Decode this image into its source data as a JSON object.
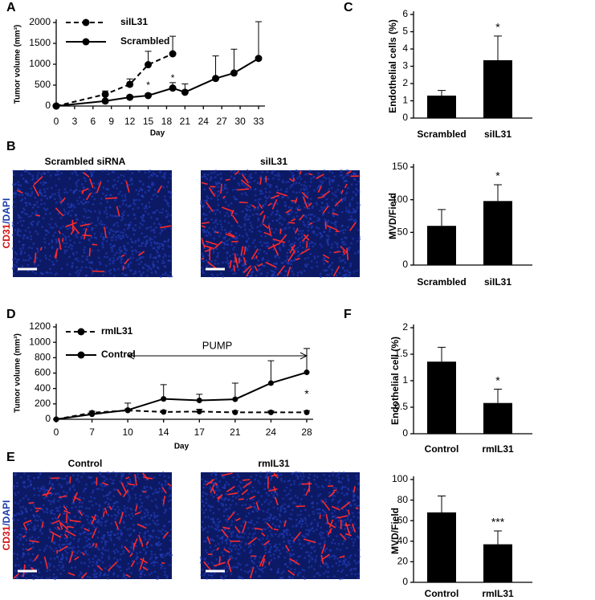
{
  "panel_labels": [
    "A",
    "B",
    "C",
    "D",
    "E",
    "F"
  ],
  "images": {
    "B": [
      "Scrambled siRNA",
      "siIL31"
    ],
    "E": [
      "Control",
      "rmIL31"
    ],
    "stain": [
      "CD31",
      "/DAPI"
    ]
  },
  "chart_data": [
    {
      "type": "line",
      "x_label": "Day",
      "y_label": "Tumor volume (mm³)",
      "xlim": [
        0,
        33
      ],
      "xticks": [
        0,
        3,
        6,
        9,
        12,
        15,
        18,
        21,
        24,
        27,
        30,
        33
      ],
      "ylim": [
        0,
        2000
      ],
      "yticks": [
        0,
        500,
        1000,
        1500,
        2000
      ],
      "legend": "upper left",
      "series": [
        {
          "name": "siIL31",
          "color": "#000000",
          "line_style": "dashed",
          "x": [
            0,
            8,
            12,
            15,
            19
          ],
          "values": [
            0,
            280,
            520,
            990,
            1250
          ],
          "errors": [
            0,
            80,
            130,
            320,
            420
          ]
        },
        {
          "name": "Scrambled",
          "color": "#000000",
          "line_style": "solid",
          "x": [
            0,
            8,
            12,
            15,
            19,
            21,
            26,
            29,
            33
          ],
          "values": [
            0,
            120,
            210,
            250,
            430,
            330,
            660,
            790,
            1140
          ],
          "errors": [
            0,
            30,
            40,
            50,
            130,
            200,
            540,
            570,
            880
          ]
        }
      ],
      "annotations": [
        {
          "text": "**",
          "x": 12
        },
        {
          "text": "*",
          "x": 15
        },
        {
          "text": "*",
          "x": 19
        }
      ]
    },
    {
      "type": "bar",
      "y_label": "Endothelial cells (%)",
      "categories": [
        "Scrambled",
        "siIL31"
      ],
      "values": [
        1.3,
        3.35
      ],
      "errors": [
        0.3,
        1.4
      ],
      "color": "#000000",
      "ylim": [
        0,
        6
      ],
      "yticks": [
        0,
        1,
        2,
        3,
        4,
        5,
        6
      ],
      "annotation": "*"
    },
    {
      "type": "bar",
      "y_label": "MVD/Field",
      "categories": [
        "Scrambled",
        "siIL31"
      ],
      "values": [
        60,
        98
      ],
      "errors": [
        25,
        25
      ],
      "color": "#000000",
      "ylim": [
        0,
        150
      ],
      "yticks": [
        0,
        50,
        100,
        150
      ],
      "annotation": "*"
    },
    {
      "type": "line",
      "x_label": "Day",
      "y_label": "Tumor volume (mm³)",
      "categories": [
        "0",
        "7",
        "10",
        "14",
        "17",
        "21",
        "24",
        "28"
      ],
      "ylim": [
        0,
        1200
      ],
      "yticks": [
        0,
        200,
        400,
        600,
        800,
        1000,
        1200
      ],
      "legend": "upper left",
      "series": [
        {
          "name": "rmIL31",
          "color": "#000000",
          "line_style": "dashed",
          "values": [
            0,
            85,
            115,
            95,
            100,
            90,
            90,
            90
          ],
          "errors": [
            0,
            20,
            20,
            20,
            30,
            20,
            20,
            20
          ]
        },
        {
          "name": "Control",
          "color": "#000000",
          "line_style": "solid",
          "values": [
            0,
            65,
            120,
            265,
            245,
            260,
            470,
            610
          ],
          "errors": [
            0,
            15,
            90,
            185,
            80,
            210,
            290,
            310
          ]
        }
      ],
      "arrow": {
        "label": "PUMP",
        "from": "10",
        "to": "28"
      },
      "annotation": "*"
    },
    {
      "type": "bar",
      "y_label": "Endothelial cell (%)",
      "categories": [
        "Control",
        "rmIL31"
      ],
      "values": [
        1.36,
        0.58
      ],
      "errors": [
        0.27,
        0.26
      ],
      "color": "#000000",
      "ylim": [
        0,
        2
      ],
      "yticks": [
        0,
        0.5,
        1,
        1.5,
        2
      ],
      "annotation": "*"
    },
    {
      "type": "bar",
      "y_label": "MVD/Field",
      "categories": [
        "Control",
        "rmIL31"
      ],
      "values": [
        68,
        37
      ],
      "errors": [
        16,
        13
      ],
      "color": "#000000",
      "ylim": [
        0,
        100
      ],
      "yticks": [
        0,
        20,
        40,
        60,
        80,
        100
      ],
      "annotation": "***"
    }
  ]
}
